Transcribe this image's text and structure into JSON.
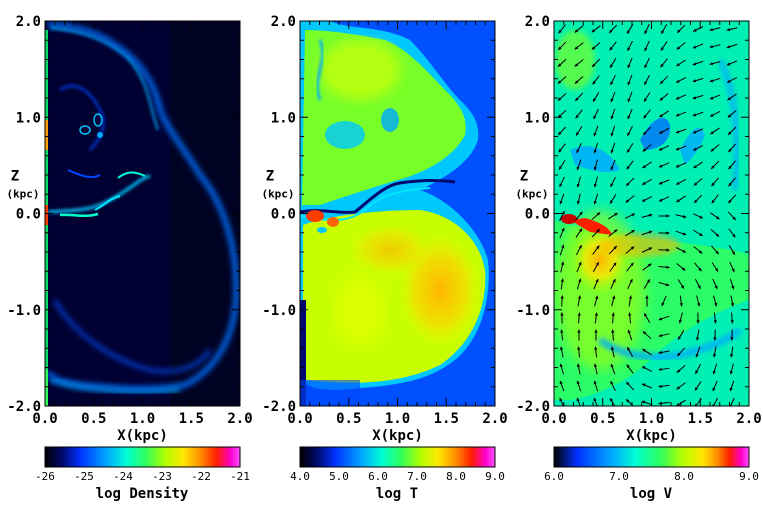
{
  "chart_data": [
    {
      "type": "heatmap",
      "quantity": "density",
      "xlabel": "X(kpc)",
      "ylabel": "Z",
      "ylabel_unit": "(kpc)",
      "xlim": [
        0.0,
        2.0
      ],
      "ylim": [
        -2.0,
        2.0
      ],
      "xticks": [
        "0.0",
        "0.5",
        "1.0",
        "1.5",
        "2.0"
      ],
      "yticks": [
        "-2.0",
        "-1.0",
        "0.0",
        "1.0",
        "2.0"
      ],
      "colorbar": {
        "label": "log Density",
        "range": [
          -26,
          -21
        ],
        "ticks": [
          "-26",
          "-25",
          "-24",
          "-23",
          "-22",
          "-21"
        ]
      }
    },
    {
      "type": "heatmap",
      "quantity": "temperature",
      "xlabel": "X(kpc)",
      "ylabel": "Z",
      "ylabel_unit": "(kpc)",
      "xlim": [
        0.0,
        2.0
      ],
      "ylim": [
        -2.0,
        2.0
      ],
      "xticks": [
        "0.0",
        "0.5",
        "1.0",
        "1.5",
        "2.0"
      ],
      "yticks": [
        "-2.0",
        "-1.0",
        "0.0",
        "1.0",
        "2.0"
      ],
      "colorbar": {
        "label": "log T",
        "range": [
          4.0,
          9.0
        ],
        "ticks": [
          "4.0",
          "5.0",
          "6.0",
          "7.0",
          "8.0",
          "9.0"
        ]
      }
    },
    {
      "type": "heatmap",
      "quantity": "velocity",
      "overlay": "velocity vector arrows",
      "xlabel": "X(kpc)",
      "ylabel": "Z",
      "ylabel_unit": "(kpc)",
      "xlim": [
        0.0,
        2.0
      ],
      "ylim": [
        -2.0,
        2.0
      ],
      "xticks": [
        "0.0",
        "0.5",
        "1.0",
        "1.5",
        "2.0"
      ],
      "yticks": [
        "-2.0",
        "-1.0",
        "0.0",
        "1.0",
        "2.0"
      ],
      "colorbar": {
        "label": "log V",
        "range": [
          6.0,
          9.0
        ],
        "ticks": [
          "6.0",
          "7.0",
          "8.0",
          "9.0"
        ]
      }
    }
  ],
  "colormap": [
    "#000000",
    "#000a6e",
    "#0032ff",
    "#00aaff",
    "#00ffd2",
    "#32ff5a",
    "#b4ff00",
    "#ffe600",
    "#ff8c00",
    "#ff1e00",
    "#ff00c8",
    "#ff50ff"
  ]
}
